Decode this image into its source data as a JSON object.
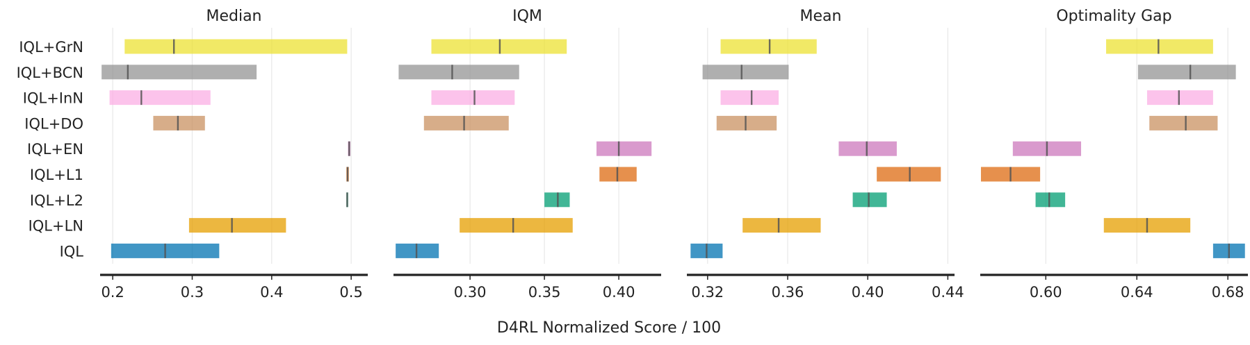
{
  "chart_data": {
    "type": "interval",
    "xlabel": "D4RL Normalized Score / 100",
    "methods": [
      "IQL+GrN",
      "IQL+BCN",
      "IQL+InN",
      "IQL+DO",
      "IQL+EN",
      "IQL+L1",
      "IQL+L2",
      "IQL+LN",
      "IQL"
    ],
    "colors": {
      "IQL+GrN": "#ece133",
      "IQL+BCN": "#949494",
      "IQL+InN": "#fbafe4",
      "IQL+DO": "#ca9161",
      "IQL+EN": "#cc78bc",
      "IQL+L1": "#de6b11",
      "IQL+L2": "#029e73",
      "IQL+LN": "#e69f00",
      "IQL": "#0173b2"
    },
    "panels": [
      {
        "title": "Median",
        "xlim": [
          0.185,
          0.52
        ],
        "ticks": [
          0.2,
          0.3,
          0.4,
          0.5
        ],
        "tick_labels": [
          "0.2",
          "0.3",
          "0.4",
          "0.5"
        ],
        "intervals": [
          {
            "method": "IQL+GrN",
            "low": 0.215,
            "high": 0.495,
            "point": 0.277
          },
          {
            "method": "IQL+BCN",
            "low": 0.186,
            "high": 0.381,
            "point": 0.219
          },
          {
            "method": "IQL+InN",
            "low": 0.196,
            "high": 0.323,
            "point": 0.236
          },
          {
            "method": "IQL+DO",
            "low": 0.251,
            "high": 0.316,
            "point": 0.282
          },
          {
            "method": "IQL+EN",
            "low": 0.496,
            "high": 0.499,
            "point": 0.4975
          },
          {
            "method": "IQL+L1",
            "low": 0.494,
            "high": 0.497,
            "point": 0.4955
          },
          {
            "method": "IQL+L2",
            "low": 0.494,
            "high": 0.496,
            "point": 0.495
          },
          {
            "method": "IQL+LN",
            "low": 0.296,
            "high": 0.418,
            "point": 0.35
          },
          {
            "method": "IQL",
            "low": 0.198,
            "high": 0.334,
            "point": 0.266
          }
        ]
      },
      {
        "title": "IQM",
        "xlim": [
          0.249,
          0.428
        ],
        "ticks": [
          0.3,
          0.35,
          0.4
        ],
        "tick_labels": [
          "0.30",
          "0.35",
          "0.40"
        ],
        "intervals": [
          {
            "method": "IQL+GrN",
            "low": 0.274,
            "high": 0.365,
            "point": 0.32
          },
          {
            "method": "IQL+BCN",
            "low": 0.252,
            "high": 0.333,
            "point": 0.288
          },
          {
            "method": "IQL+InN",
            "low": 0.274,
            "high": 0.33,
            "point": 0.303
          },
          {
            "method": "IQL+DO",
            "low": 0.269,
            "high": 0.326,
            "point": 0.296
          },
          {
            "method": "IQL+EN",
            "low": 0.385,
            "high": 0.422,
            "point": 0.4
          },
          {
            "method": "IQL+L1",
            "low": 0.387,
            "high": 0.412,
            "point": 0.399
          },
          {
            "method": "IQL+L2",
            "low": 0.35,
            "high": 0.367,
            "point": 0.359
          },
          {
            "method": "IQL+LN",
            "low": 0.293,
            "high": 0.369,
            "point": 0.329
          },
          {
            "method": "IQL",
            "low": 0.25,
            "high": 0.279,
            "point": 0.264
          }
        ]
      },
      {
        "title": "Mean",
        "xlim": [
          0.31,
          0.443
        ],
        "ticks": [
          0.32,
          0.36,
          0.4,
          0.44
        ],
        "tick_labels": [
          "0.32",
          "0.36",
          "0.40",
          "0.44"
        ],
        "intervals": [
          {
            "method": "IQL+GrN",
            "low": 0.3265,
            "high": 0.3745,
            "point": 0.351
          },
          {
            "method": "IQL+BCN",
            "low": 0.3175,
            "high": 0.3605,
            "point": 0.337
          },
          {
            "method": "IQL+InN",
            "low": 0.3265,
            "high": 0.3555,
            "point": 0.342
          },
          {
            "method": "IQL+DO",
            "low": 0.3245,
            "high": 0.3545,
            "point": 0.339
          },
          {
            "method": "IQL+EN",
            "low": 0.3855,
            "high": 0.4145,
            "point": 0.3995
          },
          {
            "method": "IQL+L1",
            "low": 0.4045,
            "high": 0.4365,
            "point": 0.421
          },
          {
            "method": "IQL+L2",
            "low": 0.3925,
            "high": 0.4095,
            "point": 0.4005
          },
          {
            "method": "IQL+LN",
            "low": 0.3375,
            "high": 0.3765,
            "point": 0.3555
          },
          {
            "method": "IQL",
            "low": 0.3115,
            "high": 0.3275,
            "point": 0.3195
          }
        ]
      },
      {
        "title": "Optimality Gap",
        "xlim": [
          0.5715,
          0.6885
        ],
        "ticks": [
          0.6,
          0.64,
          0.68
        ],
        "tick_labels": [
          "0.60",
          "0.64",
          "0.68"
        ],
        "intervals": [
          {
            "method": "IQL+GrN",
            "low": 0.6265,
            "high": 0.6735,
            "point": 0.6495
          },
          {
            "method": "IQL+BCN",
            "low": 0.6405,
            "high": 0.6835,
            "point": 0.6635
          },
          {
            "method": "IQL+InN",
            "low": 0.6445,
            "high": 0.6735,
            "point": 0.6585
          },
          {
            "method": "IQL+DO",
            "low": 0.6455,
            "high": 0.6755,
            "point": 0.6615
          },
          {
            "method": "IQL+EN",
            "low": 0.5855,
            "high": 0.6155,
            "point": 0.6005
          },
          {
            "method": "IQL+L1",
            "low": 0.5715,
            "high": 0.5975,
            "point": 0.5845
          },
          {
            "method": "IQL+L2",
            "low": 0.5955,
            "high": 0.6085,
            "point": 0.6015
          },
          {
            "method": "IQL+LN",
            "low": 0.6255,
            "high": 0.6635,
            "point": 0.6445
          },
          {
            "method": "IQL",
            "low": 0.6735,
            "high": 0.6875,
            "point": 0.6805
          }
        ]
      }
    ]
  }
}
